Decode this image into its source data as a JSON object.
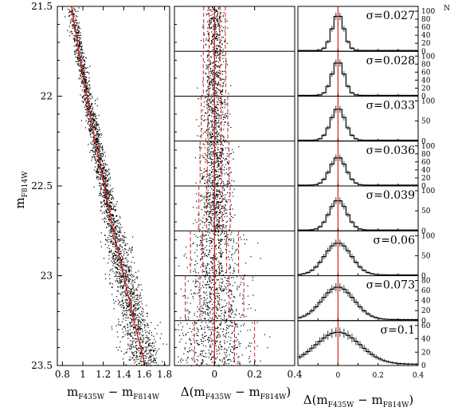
{
  "chart_data": [
    {
      "type": "scatter",
      "panel": "cmd",
      "xlabel": {
        "base": "m",
        "sub1": "F435W",
        "sep": " − m",
        "sub2": "F814W"
      },
      "ylabel": {
        "base": "m",
        "sub": "F814W"
      },
      "xlim": [
        0.75,
        1.85
      ],
      "ylim": [
        23.5,
        21.5
      ],
      "x_ticks": [
        "0.8",
        "1",
        "1.2",
        "1.4",
        "1.6",
        "1.8"
      ],
      "x_tick_values": [
        0.8,
        1.0,
        1.2,
        1.4,
        1.6,
        1.8
      ],
      "y_ticks": [
        "21.5",
        "22",
        "22.5",
        "23",
        "23.5"
      ],
      "y_tick_values": [
        21.5,
        22.0,
        22.5,
        23.0,
        23.5
      ],
      "fiducial_line": {
        "color": "#d42020",
        "mag": [
          21.5,
          21.75,
          22.0,
          22.25,
          22.5,
          22.75,
          23.0,
          23.25,
          23.5
        ],
        "color_index": [
          0.89,
          0.96,
          1.04,
          1.12,
          1.21,
          1.3,
          1.4,
          1.5,
          1.61
        ]
      },
      "point_color": "#000000"
    },
    {
      "type": "scatter",
      "panel": "rectified",
      "xlabel": {
        "base": "Δ(m",
        "sub1": "F435W",
        "sep": " − m",
        "sub2": "F814W",
        "end": ")"
      },
      "xlim": [
        -0.2,
        0.4
      ],
      "ylim": [
        23.5,
        21.5
      ],
      "x_ticks": [
        "0",
        "0.2",
        "0.4"
      ],
      "x_tick_values": [
        0.0,
        0.2,
        0.4
      ],
      "bin_edges_mag": [
        21.75,
        22.0,
        22.25,
        22.5,
        22.75,
        23.0,
        23.25
      ],
      "red_solid_line_x": 0.0,
      "bin_sigma": [
        0.027,
        0.028,
        0.033,
        0.036,
        0.039,
        0.06,
        0.073,
        0.1
      ],
      "line_color": "#d42020"
    },
    {
      "type": "histogram",
      "panel": "histograms",
      "xlabel": {
        "base": "Δ(m",
        "sub1": "F435W",
        "sep": " − m",
        "sub2": "F814W",
        "end": ")"
      },
      "ylabel": "N",
      "xlim": [
        -0.2,
        0.4
      ],
      "x_ticks": [
        "0",
        "0.2",
        "0.4"
      ],
      "x_tick_values": [
        0.0,
        0.2,
        0.4
      ],
      "red_line_x": 0.0,
      "bins": [
        {
          "sigma_label": "σ=0.027",
          "sigma": 0.027,
          "ymax": 100,
          "y_ticks": [
            "0",
            "20",
            "40",
            "60",
            "80",
            "100"
          ],
          "y_tick_values": [
            0,
            20,
            40,
            60,
            80,
            100
          ],
          "peak": 90
        },
        {
          "sigma_label": "σ=0.028",
          "sigma": 0.028,
          "ymax": 100,
          "y_ticks": [
            "0",
            "20",
            "40",
            "60",
            "80",
            "100"
          ],
          "y_tick_values": [
            0,
            20,
            40,
            60,
            80,
            100
          ],
          "peak": 85
        },
        {
          "sigma_label": "σ=0.033",
          "sigma": 0.033,
          "ymax": 100,
          "y_ticks": [
            "0",
            "50",
            "100"
          ],
          "y_tick_values": [
            0,
            50,
            100
          ],
          "peak": 80
        },
        {
          "sigma_label": "σ=0.036",
          "sigma": 0.036,
          "ymax": 100,
          "y_ticks": [
            "0",
            "20",
            "40",
            "60",
            "80",
            "100"
          ],
          "y_tick_values": [
            0,
            20,
            40,
            60,
            80,
            100
          ],
          "peak": 70
        },
        {
          "sigma_label": "σ=0.039",
          "sigma": 0.039,
          "ymax": 100,
          "y_ticks": [
            "0",
            "50",
            "100"
          ],
          "y_tick_values": [
            0,
            50,
            100
          ],
          "peak": 75
        },
        {
          "sigma_label": "σ=0.06",
          "sigma": 0.06,
          "ymax": 100,
          "y_ticks": [
            "0",
            "50",
            "100"
          ],
          "y_tick_values": [
            0,
            50,
            100
          ],
          "peak": 80
        },
        {
          "sigma_label": "σ=0.073",
          "sigma": 0.073,
          "ymax": 80,
          "y_ticks": [
            "0",
            "20",
            "40",
            "60",
            "80"
          ],
          "y_tick_values": [
            0,
            20,
            40,
            60,
            80
          ],
          "peak": 65
        },
        {
          "sigma_label": "σ=0.1",
          "sigma": 0.1,
          "ymax": 60,
          "y_ticks": [
            "0",
            "20",
            "40",
            "60"
          ],
          "y_tick_values": [
            0,
            20,
            40,
            60
          ],
          "peak": 48
        }
      ]
    }
  ]
}
